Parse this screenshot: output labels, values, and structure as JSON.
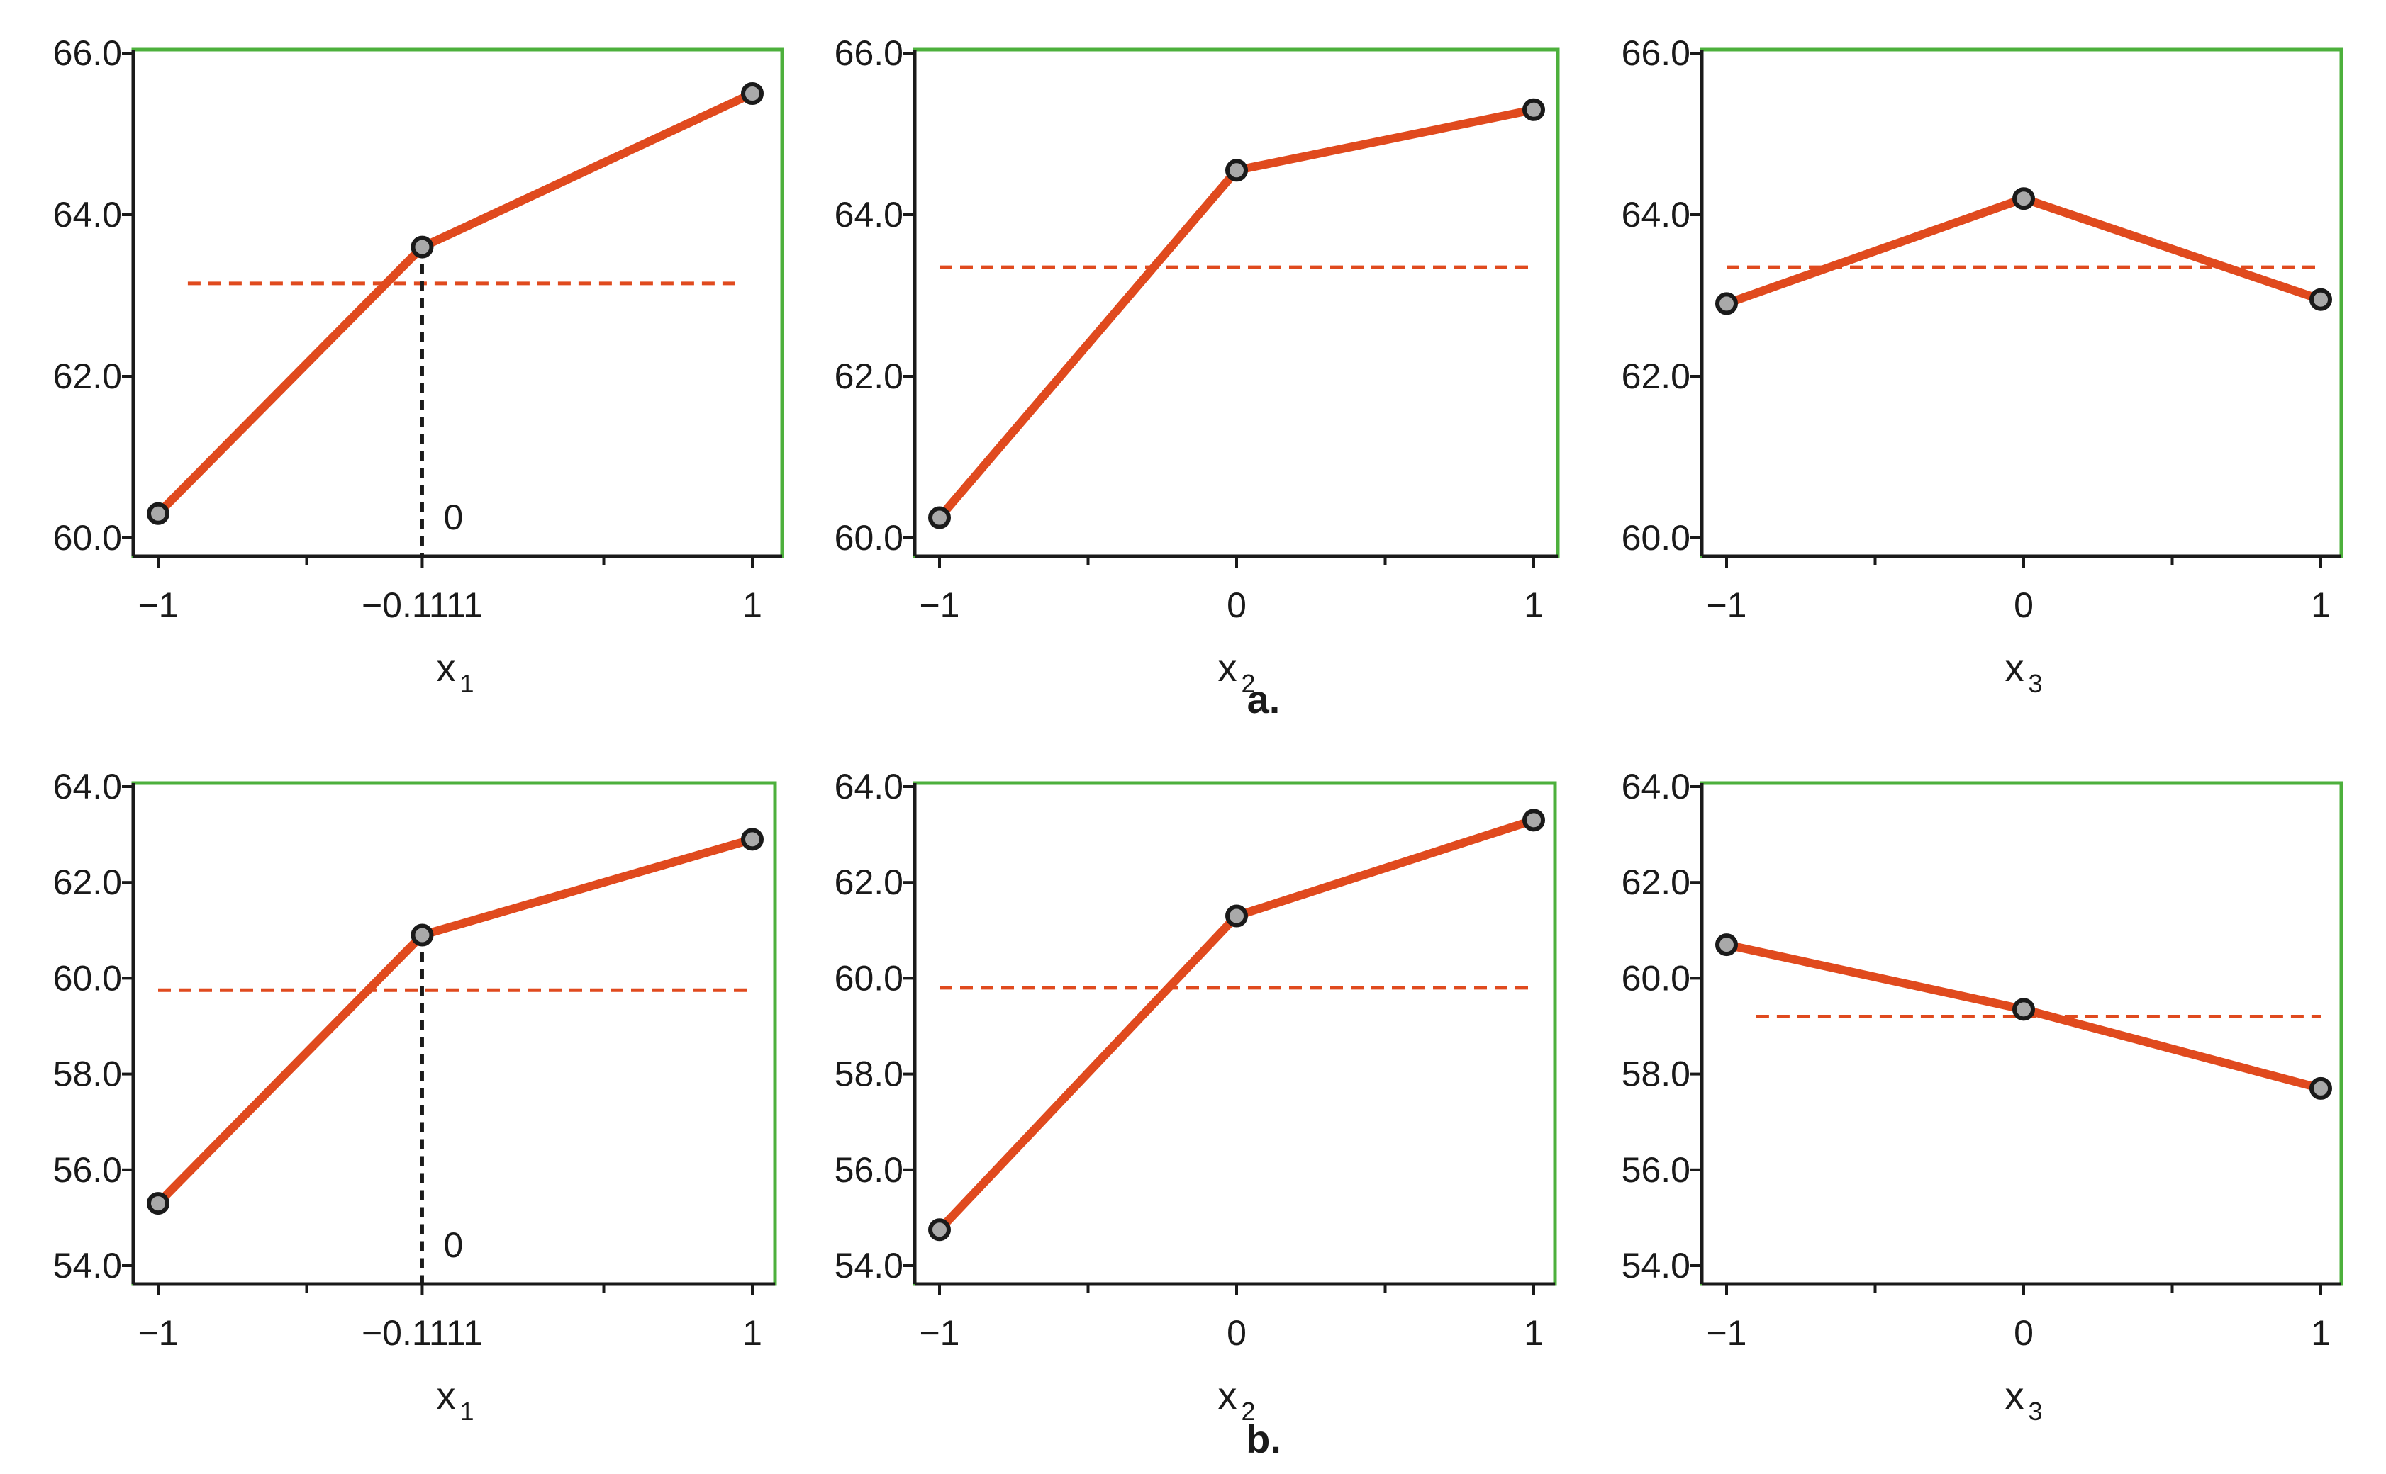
{
  "figure": {
    "group_labels": [
      "a.",
      "b."
    ]
  },
  "chart_data": [
    {
      "type": "line",
      "group": "a.",
      "xlabel": "x",
      "xlabel_sub": "1",
      "x": [
        -1,
        -0.1111,
        1
      ],
      "values": [
        60.3,
        63.6,
        65.5
      ],
      "mean": 63.15,
      "ylim": [
        60.0,
        66.0
      ],
      "yticks": [
        "60.0",
        "62.0",
        "64.0",
        "66.0"
      ],
      "xticks": [
        {
          "v": -1,
          "label": "−1"
        },
        {
          "v": -0.1111,
          "label": "−0.1111"
        },
        {
          "v": 1,
          "label": "1"
        }
      ],
      "minor_xticks": [
        -0.5,
        0.5
      ],
      "marker": {
        "x": -0.1111,
        "label": "0"
      },
      "mean_extent": [
        -0.9,
        0.95
      ]
    },
    {
      "type": "line",
      "group": "a.",
      "xlabel": "x",
      "xlabel_sub": "2",
      "x": [
        -1,
        0,
        1
      ],
      "values": [
        60.25,
        64.55,
        65.3
      ],
      "mean": 63.35,
      "ylim": [
        60.0,
        66.0
      ],
      "yticks": [
        "60.0",
        "62.0",
        "64.0",
        "66.0"
      ],
      "xticks": [
        {
          "v": -1,
          "label": "−1"
        },
        {
          "v": 0,
          "label": "0"
        },
        {
          "v": 1,
          "label": "1"
        }
      ],
      "minor_xticks": [
        -0.5,
        0.5
      ],
      "mean_extent": [
        -1,
        1
      ]
    },
    {
      "type": "line",
      "group": "a.",
      "xlabel": "x",
      "xlabel_sub": "3",
      "x": [
        -1,
        0,
        1
      ],
      "values": [
        62.9,
        64.2,
        62.95
      ],
      "mean": 63.35,
      "ylim": [
        60.0,
        66.0
      ],
      "yticks": [
        "60.0",
        "62.0",
        "64.0",
        "66.0"
      ],
      "xticks": [
        {
          "v": -1,
          "label": "−1"
        },
        {
          "v": 0,
          "label": "0"
        },
        {
          "v": 1,
          "label": "1"
        }
      ],
      "minor_xticks": [
        -0.5,
        0.5
      ],
      "mean_extent": [
        -1,
        1
      ]
    },
    {
      "type": "line",
      "group": "b.",
      "xlabel": "x",
      "xlabel_sub": "1",
      "x": [
        -1,
        -0.1111,
        1
      ],
      "values": [
        55.3,
        60.9,
        62.9
      ],
      "mean": 59.75,
      "ylim": [
        54.0,
        64.0
      ],
      "yticks": [
        "54.0",
        "56.0",
        "58.0",
        "60.0",
        "62.0",
        "64.0"
      ],
      "xticks": [
        {
          "v": -1,
          "label": "−1"
        },
        {
          "v": -0.1111,
          "label": "−0.1111"
        },
        {
          "v": 1,
          "label": "1"
        }
      ],
      "minor_xticks": [
        -0.5,
        0.5
      ],
      "marker": {
        "x": -0.1111,
        "label": "0"
      },
      "mean_extent": [
        -1,
        1
      ]
    },
    {
      "type": "line",
      "group": "b.",
      "xlabel": "x",
      "xlabel_sub": "2",
      "x": [
        -1,
        0,
        1
      ],
      "values": [
        54.75,
        61.3,
        63.3
      ],
      "mean": 59.8,
      "ylim": [
        54.0,
        64.0
      ],
      "yticks": [
        "54.0",
        "56.0",
        "58.0",
        "60.0",
        "62.0",
        "64.0"
      ],
      "xticks": [
        {
          "v": -1,
          "label": "−1"
        },
        {
          "v": 0,
          "label": "0"
        },
        {
          "v": 1,
          "label": "1"
        }
      ],
      "minor_xticks": [
        -0.5,
        0.5
      ],
      "mean_extent": [
        -1,
        1
      ]
    },
    {
      "type": "line",
      "group": "b.",
      "xlabel": "x",
      "xlabel_sub": "3",
      "x": [
        -1,
        0,
        1
      ],
      "values": [
        60.7,
        59.35,
        57.7
      ],
      "mean": 59.2,
      "ylim": [
        54.0,
        64.0
      ],
      "yticks": [
        "54.0",
        "56.0",
        "58.0",
        "60.0",
        "62.0",
        "64.0"
      ],
      "xticks": [
        {
          "v": -1,
          "label": "−1"
        },
        {
          "v": 0,
          "label": "0"
        },
        {
          "v": 1,
          "label": "1"
        }
      ],
      "minor_xticks": [
        -0.5,
        0.5
      ],
      "mean_extent": [
        -0.9,
        1
      ]
    }
  ]
}
